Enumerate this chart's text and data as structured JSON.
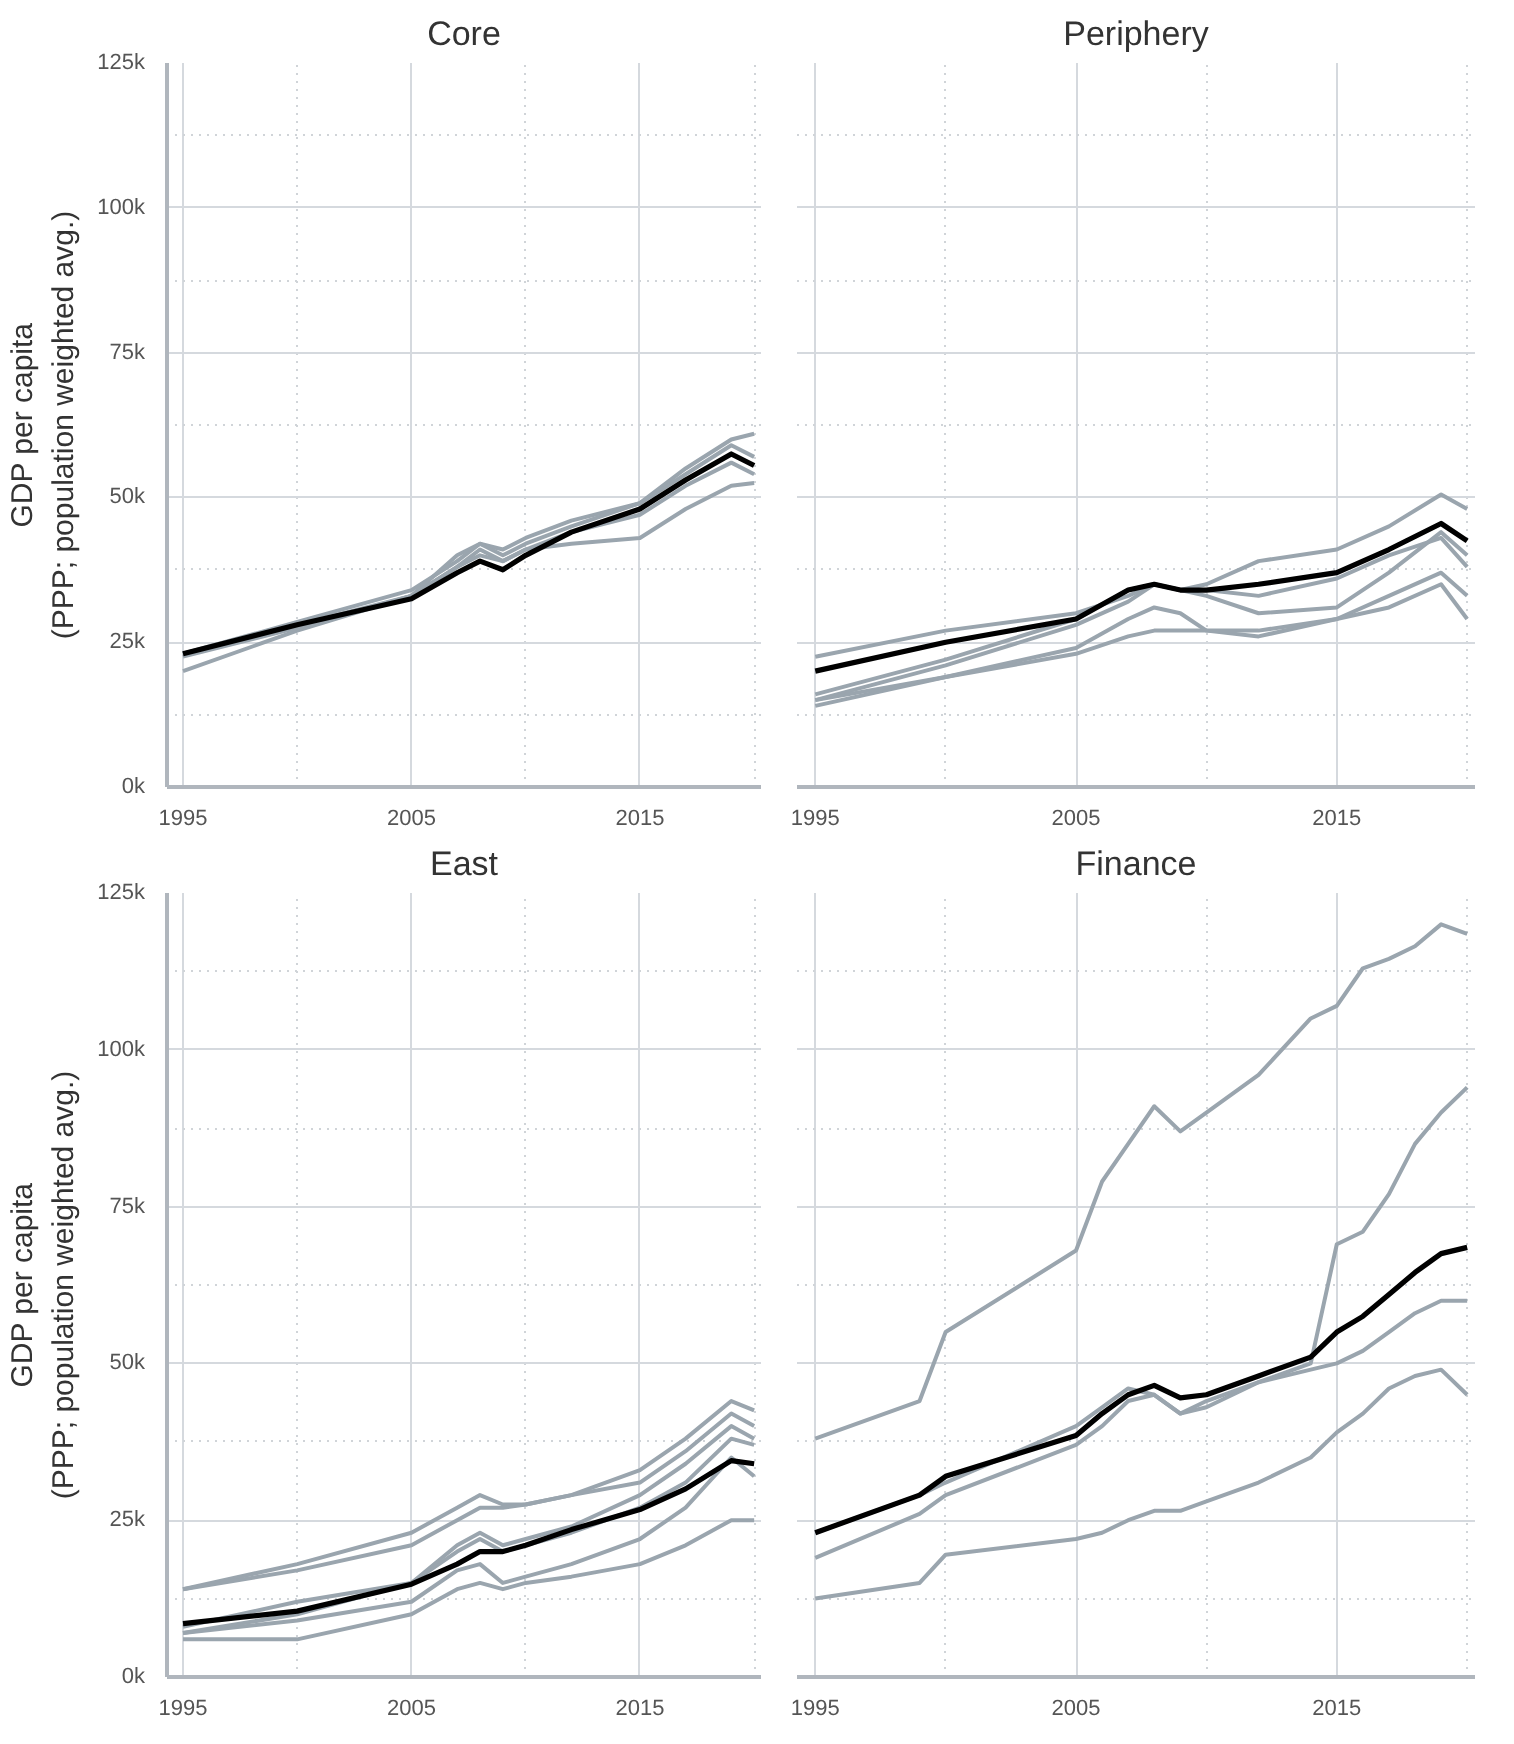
{
  "chart_data": [
    {
      "type": "line",
      "title": "Core",
      "ylabel": "GDP per capita\n(PPP; population weighted avg.)",
      "x": [
        1995,
        2000,
        2005,
        2007,
        2008,
        2009,
        2010,
        2012,
        2015,
        2017,
        2019,
        2020
      ],
      "series": [
        {
          "color": "#9aa5ae",
          "values": [
            20,
            27,
            33,
            38,
            41,
            39,
            41,
            42,
            43,
            48,
            52,
            52.5
          ]
        },
        {
          "color": "#9aa5ae",
          "values": [
            23,
            28.5,
            34,
            39,
            42,
            41,
            43,
            46,
            49,
            55,
            60,
            61
          ]
        },
        {
          "color": "#9aa5ae",
          "values": [
            23,
            28,
            33,
            40,
            42,
            40,
            42,
            45,
            49,
            54,
            59,
            57
          ]
        },
        {
          "color": "#9aa5ae",
          "values": [
            22.5,
            27.5,
            33,
            38,
            40,
            39,
            41,
            44,
            47,
            52,
            56,
            54
          ]
        },
        {
          "color": "#000000",
          "values": [
            23,
            28,
            32.5,
            37,
            39,
            37.5,
            40,
            44,
            48,
            53,
            57.5,
            55.5
          ]
        }
      ],
      "xlim": [
        1994.3,
        2020.3
      ],
      "ylim": [
        0,
        125
      ],
      "xticks": [
        1995,
        {
          "value": 2000,
          "label": null
        },
        2005,
        {
          "value": 2010,
          "label": null
        },
        2015,
        {
          "value": 2020,
          "label": null
        }
      ],
      "yticks": [
        {
          "value": 0,
          "label": "0k"
        },
        {
          "value": 12.5,
          "label": null
        },
        {
          "value": 25,
          "label": "25k"
        },
        {
          "value": 37.5,
          "label": null
        },
        {
          "value": 50,
          "label": "50k"
        },
        {
          "value": 62.5,
          "label": null
        },
        {
          "value": 75,
          "label": "75k"
        },
        {
          "value": 87.5,
          "label": null
        },
        {
          "value": 100,
          "label": "100k"
        },
        {
          "value": 112.5,
          "label": null
        },
        {
          "value": 125,
          "label": "125k"
        }
      ],
      "grid": true
    },
    {
      "type": "line",
      "title": "Periphery",
      "x": [
        1995,
        2000,
        2005,
        2007,
        2008,
        2009,
        2010,
        2012,
        2015,
        2017,
        2019,
        2020
      ],
      "series": [
        {
          "color": "#9aa5ae",
          "values": [
            22.5,
            27,
            30,
            33,
            35,
            34,
            35,
            39,
            41,
            45,
            50.5,
            48
          ]
        },
        {
          "color": "#9aa5ae",
          "values": [
            15,
            21,
            28,
            32,
            35,
            34,
            33,
            30,
            31,
            37,
            44,
            40
          ]
        },
        {
          "color": "#9aa5ae",
          "values": [
            14,
            19,
            24,
            29,
            31,
            30,
            27,
            26,
            29,
            33,
            37,
            33
          ]
        },
        {
          "color": "#9aa5ae",
          "values": [
            15,
            19,
            23,
            26,
            27,
            27,
            27,
            27,
            29,
            31,
            35,
            29
          ]
        },
        {
          "color": "#9aa5ae",
          "values": [
            16,
            22,
            29,
            34,
            35,
            34,
            34,
            33,
            36,
            40,
            43,
            38
          ]
        },
        {
          "color": "#000000",
          "values": [
            20,
            25,
            29,
            34,
            35,
            34,
            34,
            35,
            37,
            41,
            45.5,
            42.5
          ]
        }
      ],
      "xlim": [
        1994.3,
        2020.3
      ],
      "ylim": [
        0,
        125
      ],
      "xticks": [
        1995,
        {
          "value": 2000,
          "label": null
        },
        2005,
        {
          "value": 2010,
          "label": null
        },
        2015,
        {
          "value": 2020,
          "label": null
        }
      ],
      "yticks": [
        0,
        {
          "value": 12.5,
          "label": null
        },
        25,
        {
          "value": 37.5,
          "label": null
        },
        50,
        {
          "value": 62.5,
          "label": null
        },
        75,
        {
          "value": 87.5,
          "label": null
        },
        100,
        {
          "value": 112.5,
          "label": null
        },
        125
      ],
      "grid": true,
      "tick_labels": "x"
    },
    {
      "type": "line",
      "title": "East",
      "ylabel": "GDP per capita\n(PPP; population weighted avg.)",
      "x": [
        1995,
        2000,
        2005,
        2007,
        2008,
        2009,
        2010,
        2012,
        2015,
        2017,
        2019,
        2020
      ],
      "series": [
        {
          "color": "#9aa5ae",
          "values": [
            14,
            18,
            23,
            27,
            29,
            27.5,
            27.5,
            29,
            33,
            38,
            44,
            42.5
          ]
        },
        {
          "color": "#9aa5ae",
          "values": [
            14,
            17,
            21,
            25,
            27,
            27,
            27.5,
            29,
            31,
            36,
            42,
            40
          ]
        },
        {
          "color": "#9aa5ae",
          "values": [
            7,
            9,
            12,
            17,
            18,
            15,
            16,
            18,
            22,
            27,
            35,
            32
          ]
        },
        {
          "color": "#9aa5ae",
          "values": [
            6,
            6,
            10,
            14,
            15,
            14,
            15,
            16,
            18,
            21,
            25,
            25
          ]
        },
        {
          "color": "#9aa5ae",
          "values": [
            8,
            12,
            15,
            20,
            22,
            20,
            21,
            23,
            27,
            31,
            38,
            37
          ]
        },
        {
          "color": "#9aa5ae",
          "values": [
            7,
            10,
            15,
            21,
            23,
            21,
            22,
            24,
            29,
            34,
            40,
            38
          ]
        },
        {
          "color": "#000000",
          "values": [
            8.5,
            10.5,
            14.8,
            18,
            20,
            20,
            21,
            23.5,
            26.7,
            30,
            34.5,
            34
          ]
        }
      ],
      "xlim": [
        1994.3,
        2020.3
      ],
      "ylim": [
        0,
        125
      ],
      "xticks": [
        1995,
        {
          "value": 2000,
          "label": null
        },
        2005,
        {
          "value": 2010,
          "label": null
        },
        2015,
        {
          "value": 2020,
          "label": null
        }
      ],
      "yticks": [
        {
          "value": 0,
          "label": "0k"
        },
        {
          "value": 12.5,
          "label": null
        },
        {
          "value": 25,
          "label": "25k"
        },
        {
          "value": 37.5,
          "label": null
        },
        {
          "value": 50,
          "label": "50k"
        },
        {
          "value": 62.5,
          "label": null
        },
        {
          "value": 75,
          "label": "75k"
        },
        {
          "value": 87.5,
          "label": null
        },
        {
          "value": 100,
          "label": "100k"
        },
        {
          "value": 112.5,
          "label": null
        },
        {
          "value": 125,
          "label": "125k"
        }
      ],
      "grid": true
    },
    {
      "type": "line",
      "title": "Finance",
      "x": [
        1995,
        1999,
        2000,
        2005,
        2006,
        2007,
        2008,
        2009,
        2010,
        2012,
        2014,
        2015,
        2016,
        2017,
        2018,
        2019,
        2020
      ],
      "series": [
        {
          "color": "#9aa5ae",
          "values": [
            38,
            44,
            55,
            68,
            79,
            85,
            91,
            87,
            90,
            96,
            105,
            107,
            113,
            114.5,
            116.5,
            120,
            118.5
          ]
        },
        {
          "color": "#9aa5ae",
          "values": [
            23,
            29,
            31,
            40,
            43,
            46,
            45,
            42,
            43,
            47,
            50,
            69,
            71,
            77,
            85,
            90,
            94
          ]
        },
        {
          "color": "#9aa5ae",
          "values": [
            19,
            26,
            29,
            37,
            40,
            44,
            45,
            42,
            44,
            47,
            49,
            50,
            52,
            55,
            58,
            60,
            60
          ]
        },
        {
          "color": "#9aa5ae",
          "values": [
            12.5,
            15,
            19.5,
            22,
            23,
            25,
            26.5,
            26.5,
            28,
            31,
            35,
            39,
            42,
            46,
            48,
            49,
            45
          ]
        },
        {
          "color": "#000000",
          "values": [
            23,
            29,
            32,
            38.5,
            42,
            45,
            46.5,
            44.5,
            45,
            48,
            51,
            55,
            57.5,
            61,
            64.5,
            67.5,
            68.5
          ]
        }
      ],
      "xlim": [
        1994.3,
        2020.3
      ],
      "ylim": [
        0,
        125
      ],
      "xticks": [
        1995,
        {
          "value": 2000,
          "label": null
        },
        2005,
        {
          "value": 2010,
          "label": null
        },
        2015,
        {
          "value": 2020,
          "label": null
        }
      ],
      "yticks": [
        0,
        {
          "value": 12.5,
          "label": null
        },
        25,
        {
          "value": 37.5,
          "label": null
        },
        50,
        {
          "value": 62.5,
          "label": null
        },
        75,
        {
          "value": 87.5,
          "label": null
        },
        100,
        {
          "value": 112.5,
          "label": null
        },
        125
      ],
      "grid": true,
      "tick_labels": "x"
    }
  ]
}
